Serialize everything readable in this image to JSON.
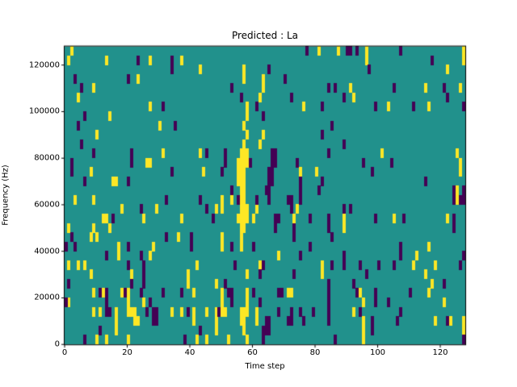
{
  "chart_data": {
    "type": "heatmap",
    "title": "Predicted : La",
    "xlabel": "Time step",
    "ylabel": "Frequency (Hz)",
    "x_range": [
      0,
      128
    ],
    "y_range": [
      0,
      128000
    ],
    "x_ticks": [
      0,
      20,
      40,
      60,
      80,
      100,
      120
    ],
    "y_ticks": [
      0,
      20000,
      40000,
      60000,
      80000,
      100000,
      120000
    ],
    "grid_cols": 128,
    "grid_rows": 32,
    "row_height_hz": 4000,
    "legend": "none",
    "grid": false,
    "colors": {
      "background": "#21918c",
      "high": "#fde725",
      "low": "#440154",
      "spine": "#000000"
    },
    "cells_high": [
      [
        2,
        0
      ],
      [
        81,
        0
      ],
      [
        87,
        0
      ],
      [
        96,
        0
      ],
      [
        127,
        0
      ],
      [
        1,
        1
      ],
      [
        13,
        1
      ],
      [
        27,
        1
      ],
      [
        37,
        1
      ],
      [
        96,
        1
      ],
      [
        127,
        1
      ],
      [
        43,
        2
      ],
      [
        57,
        2
      ],
      [
        122,
        2
      ],
      [
        23,
        3
      ],
      [
        57,
        3
      ],
      [
        63,
        3
      ],
      [
        9,
        4
      ],
      [
        63,
        4
      ],
      [
        91,
        4
      ],
      [
        115,
        4
      ],
      [
        126,
        4
      ],
      [
        4,
        5
      ],
      [
        62,
        5
      ],
      [
        92,
        5
      ],
      [
        27,
        6
      ],
      [
        58,
        6
      ],
      [
        76,
        6
      ],
      [
        103,
        6
      ],
      [
        116,
        6
      ],
      [
        14,
        7
      ],
      [
        58,
        7
      ],
      [
        30,
        8
      ],
      [
        57,
        8
      ],
      [
        10,
        9
      ],
      [
        58,
        9
      ],
      [
        63,
        9
      ],
      [
        57,
        10
      ],
      [
        62,
        10
      ],
      [
        31,
        11
      ],
      [
        43,
        11
      ],
      [
        56,
        11
      ],
      [
        57,
        11
      ],
      [
        58,
        11
      ],
      [
        101,
        11
      ],
      [
        125,
        11
      ],
      [
        26,
        12
      ],
      [
        27,
        12
      ],
      [
        55,
        12
      ],
      [
        56,
        12
      ],
      [
        57,
        12
      ],
      [
        58,
        12
      ],
      [
        126,
        12
      ],
      [
        8,
        13
      ],
      [
        44,
        13
      ],
      [
        55,
        13
      ],
      [
        56,
        13
      ],
      [
        57,
        13
      ],
      [
        75,
        13
      ],
      [
        80,
        13
      ],
      [
        126,
        13
      ],
      [
        15,
        14
      ],
      [
        16,
        14
      ],
      [
        55,
        14
      ],
      [
        56,
        14
      ],
      [
        57,
        14
      ],
      [
        56,
        15
      ],
      [
        57,
        15
      ],
      [
        125,
        15
      ],
      [
        3,
        16
      ],
      [
        9,
        16
      ],
      [
        50,
        16
      ],
      [
        53,
        16
      ],
      [
        56,
        16
      ],
      [
        57,
        16
      ],
      [
        125,
        16
      ],
      [
        18,
        17
      ],
      [
        29,
        17
      ],
      [
        48,
        17
      ],
      [
        50,
        17
      ],
      [
        56,
        17
      ],
      [
        57,
        17
      ],
      [
        58,
        17
      ],
      [
        61,
        17
      ],
      [
        74,
        17
      ],
      [
        12,
        18
      ],
      [
        13,
        18
      ],
      [
        25,
        18
      ],
      [
        37,
        18
      ],
      [
        55,
        18
      ],
      [
        56,
        18
      ],
      [
        57,
        18
      ],
      [
        58,
        18
      ],
      [
        60,
        18
      ],
      [
        73,
        18
      ],
      [
        89,
        18
      ],
      [
        105,
        18
      ],
      [
        122,
        18
      ],
      [
        1,
        19
      ],
      [
        9,
        19
      ],
      [
        14,
        19
      ],
      [
        56,
        19
      ],
      [
        57,
        19
      ],
      [
        89,
        19
      ],
      [
        8,
        20
      ],
      [
        10,
        20
      ],
      [
        36,
        20
      ],
      [
        50,
        20
      ],
      [
        56,
        20
      ],
      [
        17,
        21
      ],
      [
        28,
        21
      ],
      [
        50,
        21
      ],
      [
        56,
        21
      ],
      [
        116,
        21
      ],
      [
        17,
        22
      ],
      [
        27,
        22
      ],
      [
        68,
        22
      ],
      [
        112,
        22
      ],
      [
        1,
        23
      ],
      [
        4,
        23
      ],
      [
        6,
        23
      ],
      [
        42,
        23
      ],
      [
        62,
        23
      ],
      [
        82,
        23
      ],
      [
        111,
        23
      ],
      [
        118,
        23
      ],
      [
        8,
        24
      ],
      [
        21,
        24
      ],
      [
        39,
        24
      ],
      [
        58,
        24
      ],
      [
        82,
        24
      ],
      [
        115,
        24
      ],
      [
        39,
        25
      ],
      [
        48,
        25
      ],
      [
        117,
        25
      ],
      [
        9,
        26
      ],
      [
        12,
        26
      ],
      [
        18,
        26
      ],
      [
        20,
        26
      ],
      [
        41,
        26
      ],
      [
        50,
        26
      ],
      [
        58,
        26
      ],
      [
        71,
        26
      ],
      [
        72,
        26
      ],
      [
        94,
        26
      ],
      [
        116,
        26
      ],
      [
        1,
        27
      ],
      [
        20,
        27
      ],
      [
        25,
        27
      ],
      [
        50,
        27
      ],
      [
        58,
        27
      ],
      [
        95,
        27
      ],
      [
        121,
        27
      ],
      [
        9,
        28
      ],
      [
        11,
        28
      ],
      [
        16,
        28
      ],
      [
        20,
        28
      ],
      [
        21,
        28
      ],
      [
        22,
        28
      ],
      [
        34,
        28
      ],
      [
        37,
        28
      ],
      [
        41,
        28
      ],
      [
        45,
        28
      ],
      [
        48,
        28
      ],
      [
        50,
        28
      ],
      [
        51,
        28
      ],
      [
        56,
        28
      ],
      [
        57,
        28
      ],
      [
        58,
        28
      ],
      [
        61,
        28
      ],
      [
        92,
        28
      ],
      [
        16,
        29
      ],
      [
        22,
        29
      ],
      [
        23,
        29
      ],
      [
        41,
        29
      ],
      [
        48,
        29
      ],
      [
        56,
        29
      ],
      [
        57,
        29
      ],
      [
        61,
        29
      ],
      [
        95,
        29
      ],
      [
        118,
        29
      ],
      [
        123,
        29
      ],
      [
        127,
        29
      ],
      [
        16,
        30
      ],
      [
        48,
        30
      ],
      [
        57,
        30
      ],
      [
        95,
        30
      ],
      [
        127,
        30
      ],
      [
        10,
        31
      ],
      [
        13,
        31
      ],
      [
        20,
        31
      ],
      [
        42,
        31
      ],
      [
        45,
        31
      ],
      [
        52,
        31
      ],
      [
        58,
        31
      ],
      [
        95,
        31
      ]
    ],
    "cells_low": [
      [
        77,
        0
      ],
      [
        90,
        0
      ],
      [
        91,
        0
      ],
      [
        93,
        0
      ],
      [
        107,
        0
      ],
      [
        23,
        1
      ],
      [
        34,
        1
      ],
      [
        117,
        1
      ],
      [
        34,
        2
      ],
      [
        65,
        2
      ],
      [
        97,
        2
      ],
      [
        3,
        3
      ],
      [
        20,
        3
      ],
      [
        70,
        3
      ],
      [
        5,
        4
      ],
      [
        53,
        4
      ],
      [
        84,
        4
      ],
      [
        86,
        4
      ],
      [
        105,
        4
      ],
      [
        121,
        4
      ],
      [
        56,
        5
      ],
      [
        72,
        5
      ],
      [
        89,
        5
      ],
      [
        122,
        5
      ],
      [
        31,
        6
      ],
      [
        61,
        6
      ],
      [
        82,
        6
      ],
      [
        99,
        6
      ],
      [
        111,
        6
      ],
      [
        127,
        6
      ],
      [
        6,
        7
      ],
      [
        63,
        7
      ],
      [
        4,
        8
      ],
      [
        35,
        8
      ],
      [
        85,
        8
      ],
      [
        82,
        9
      ],
      [
        5,
        10
      ],
      [
        89,
        10
      ],
      [
        9,
        11
      ],
      [
        21,
        11
      ],
      [
        45,
        11
      ],
      [
        51,
        11
      ],
      [
        66,
        11
      ],
      [
        67,
        11
      ],
      [
        84,
        11
      ],
      [
        2,
        12
      ],
      [
        21,
        12
      ],
      [
        51,
        12
      ],
      [
        59,
        12
      ],
      [
        66,
        12
      ],
      [
        67,
        12
      ],
      [
        74,
        12
      ],
      [
        95,
        12
      ],
      [
        104,
        12
      ],
      [
        2,
        13
      ],
      [
        34,
        13
      ],
      [
        50,
        13
      ],
      [
        65,
        13
      ],
      [
        66,
        13
      ],
      [
        98,
        13
      ],
      [
        6,
        14
      ],
      [
        20,
        14
      ],
      [
        65,
        14
      ],
      [
        66,
        14
      ],
      [
        75,
        14
      ],
      [
        82,
        14
      ],
      [
        115,
        14
      ],
      [
        53,
        15
      ],
      [
        64,
        15
      ],
      [
        65,
        15
      ],
      [
        75,
        15
      ],
      [
        81,
        15
      ],
      [
        124,
        15
      ],
      [
        127,
        15
      ],
      [
        32,
        16
      ],
      [
        43,
        16
      ],
      [
        55,
        16
      ],
      [
        61,
        16
      ],
      [
        65,
        16
      ],
      [
        71,
        16
      ],
      [
        72,
        16
      ],
      [
        75,
        16
      ],
      [
        124,
        16
      ],
      [
        126,
        16
      ],
      [
        127,
        16
      ],
      [
        24,
        17
      ],
      [
        45,
        17
      ],
      [
        72,
        17
      ],
      [
        89,
        17
      ],
      [
        91,
        17
      ],
      [
        15,
        18
      ],
      [
        47,
        18
      ],
      [
        67,
        18
      ],
      [
        68,
        18
      ],
      [
        78,
        18
      ],
      [
        84,
        18
      ],
      [
        99,
        18
      ],
      [
        108,
        18
      ],
      [
        124,
        18
      ],
      [
        67,
        19
      ],
      [
        73,
        19
      ],
      [
        84,
        19
      ],
      [
        124,
        19
      ],
      [
        2,
        20
      ],
      [
        32,
        20
      ],
      [
        40,
        20
      ],
      [
        73,
        20
      ],
      [
        85,
        20
      ],
      [
        0,
        21
      ],
      [
        3,
        21
      ],
      [
        20,
        21
      ],
      [
        40,
        21
      ],
      [
        53,
        21
      ],
      [
        60,
        21
      ],
      [
        78,
        21
      ],
      [
        107,
        21
      ],
      [
        13,
        22
      ],
      [
        24,
        22
      ],
      [
        75,
        22
      ],
      [
        89,
        22
      ],
      [
        107,
        22
      ],
      [
        127,
        22
      ],
      [
        20,
        23
      ],
      [
        25,
        23
      ],
      [
        54,
        23
      ],
      [
        63,
        23
      ],
      [
        85,
        23
      ],
      [
        89,
        23
      ],
      [
        94,
        23
      ],
      [
        100,
        23
      ],
      [
        105,
        23
      ],
      [
        126,
        23
      ],
      [
        25,
        24
      ],
      [
        62,
        24
      ],
      [
        73,
        24
      ],
      [
        96,
        24
      ],
      [
        1,
        25
      ],
      [
        21,
        25
      ],
      [
        25,
        25
      ],
      [
        51,
        25
      ],
      [
        84,
        25
      ],
      [
        92,
        25
      ],
      [
        121,
        25
      ],
      [
        11,
        26
      ],
      [
        13,
        26
      ],
      [
        19,
        26
      ],
      [
        24,
        26
      ],
      [
        31,
        26
      ],
      [
        37,
        26
      ],
      [
        52,
        26
      ],
      [
        53,
        26
      ],
      [
        60,
        26
      ],
      [
        68,
        26
      ],
      [
        69,
        26
      ],
      [
        84,
        26
      ],
      [
        93,
        26
      ],
      [
        99,
        26
      ],
      [
        110,
        26
      ],
      [
        0,
        27
      ],
      [
        13,
        27
      ],
      [
        27,
        27
      ],
      [
        53,
        27
      ],
      [
        62,
        27
      ],
      [
        84,
        27
      ],
      [
        99,
        27
      ],
      [
        103,
        27
      ],
      [
        13,
        28
      ],
      [
        14,
        28
      ],
      [
        26,
        28
      ],
      [
        28,
        28
      ],
      [
        29,
        28
      ],
      [
        39,
        28
      ],
      [
        49,
        28
      ],
      [
        68,
        28
      ],
      [
        72,
        28
      ],
      [
        75,
        28
      ],
      [
        79,
        28
      ],
      [
        84,
        28
      ],
      [
        94,
        28
      ],
      [
        107,
        28
      ],
      [
        28,
        29
      ],
      [
        29,
        29
      ],
      [
        64,
        29
      ],
      [
        65,
        29
      ],
      [
        71,
        29
      ],
      [
        72,
        29
      ],
      [
        76,
        29
      ],
      [
        84,
        29
      ],
      [
        98,
        29
      ],
      [
        106,
        29
      ],
      [
        122,
        29
      ],
      [
        11,
        30
      ],
      [
        43,
        30
      ],
      [
        63,
        30
      ],
      [
        64,
        30
      ],
      [
        65,
        30
      ],
      [
        98,
        30
      ],
      [
        6,
        31
      ],
      [
        38,
        31
      ],
      [
        63,
        31
      ],
      [
        86,
        31
      ],
      [
        127,
        31
      ]
    ]
  }
}
